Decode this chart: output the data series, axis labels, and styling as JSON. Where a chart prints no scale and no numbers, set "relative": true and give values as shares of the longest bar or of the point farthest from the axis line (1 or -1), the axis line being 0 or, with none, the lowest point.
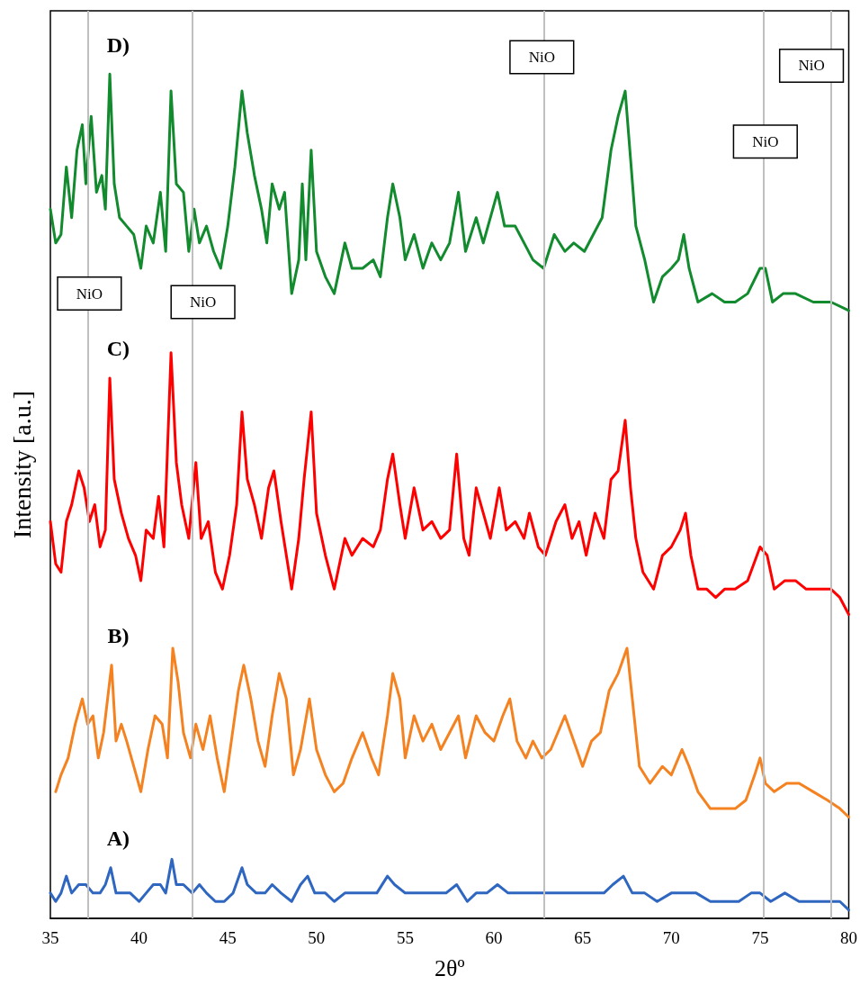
{
  "chart_data": {
    "type": "line",
    "relative": true,
    "xlabel": "2θº",
    "ylabel": "Intensity [a.u.]",
    "xlim": [
      35,
      80
    ],
    "xticks": [
      35,
      40,
      45,
      50,
      55,
      60,
      65,
      70,
      75,
      80
    ],
    "grid": false,
    "legend": false,
    "marker": "none",
    "line_style": "solid",
    "series": [
      {
        "name": "A)",
        "color": "#2e66c0",
        "x": [
          35.0,
          35.3,
          35.6,
          35.9,
          36.2,
          36.6,
          37.0,
          37.4,
          37.8,
          38.1,
          38.4,
          38.7,
          39.1,
          39.5,
          40.0,
          40.4,
          40.8,
          41.2,
          41.5,
          41.85,
          42.1,
          42.5,
          43.0,
          43.4,
          43.8,
          44.3,
          44.8,
          45.3,
          45.8,
          46.1,
          46.6,
          47.1,
          47.5,
          48.0,
          48.6,
          49.1,
          49.5,
          49.9,
          50.5,
          51.0,
          51.6,
          52.2,
          52.8,
          53.4,
          54.0,
          54.4,
          55.0,
          55.6,
          56.2,
          56.8,
          57.3,
          57.9,
          58.5,
          59.0,
          59.6,
          60.2,
          60.8,
          61.4,
          62.0,
          62.6,
          63.2,
          63.8,
          64.4,
          65.0,
          65.6,
          66.2,
          66.7,
          67.3,
          67.8,
          68.5,
          69.2,
          70.0,
          70.7,
          71.4,
          72.2,
          73.0,
          73.8,
          74.5,
          75.0,
          75.6,
          76.4,
          77.2,
          78.0,
          79.0,
          79.5,
          80.0
        ],
        "values": [
          0.03,
          0.02,
          0.03,
          0.05,
          0.03,
          0.04,
          0.04,
          0.03,
          0.03,
          0.04,
          0.06,
          0.03,
          0.03,
          0.03,
          0.02,
          0.03,
          0.04,
          0.04,
          0.03,
          0.07,
          0.04,
          0.04,
          0.03,
          0.04,
          0.03,
          0.02,
          0.02,
          0.03,
          0.06,
          0.04,
          0.03,
          0.03,
          0.04,
          0.03,
          0.02,
          0.04,
          0.05,
          0.03,
          0.03,
          0.02,
          0.03,
          0.03,
          0.03,
          0.03,
          0.05,
          0.04,
          0.03,
          0.03,
          0.03,
          0.03,
          0.03,
          0.04,
          0.02,
          0.03,
          0.03,
          0.04,
          0.03,
          0.03,
          0.03,
          0.03,
          0.03,
          0.03,
          0.03,
          0.03,
          0.03,
          0.03,
          0.04,
          0.05,
          0.03,
          0.03,
          0.02,
          0.03,
          0.03,
          0.03,
          0.02,
          0.02,
          0.02,
          0.03,
          0.03,
          0.02,
          0.03,
          0.02,
          0.02,
          0.02,
          0.02,
          0.01
        ]
      },
      {
        "name": "B)",
        "color": "#f58220",
        "x": [
          35.3,
          35.6,
          36.0,
          36.4,
          36.8,
          37.1,
          37.4,
          37.7,
          38.0,
          38.45,
          38.7,
          39.0,
          39.3,
          39.7,
          40.1,
          40.5,
          40.9,
          41.3,
          41.6,
          41.9,
          42.2,
          42.5,
          42.9,
          43.2,
          43.6,
          44.0,
          44.4,
          44.8,
          45.2,
          45.6,
          45.9,
          46.3,
          46.7,
          47.1,
          47.5,
          47.9,
          48.3,
          48.7,
          49.1,
          49.6,
          50.0,
          50.5,
          51.0,
          51.5,
          52.0,
          52.6,
          53.1,
          53.5,
          54.0,
          54.3,
          54.7,
          55.0,
          55.5,
          56.0,
          56.5,
          57.0,
          57.5,
          58.0,
          58.4,
          59.0,
          59.5,
          60.0,
          60.5,
          60.9,
          61.3,
          61.8,
          62.2,
          62.7,
          63.2,
          63.6,
          64.0,
          64.5,
          65.0,
          65.5,
          66.0,
          66.5,
          67.0,
          67.5,
          67.8,
          68.2,
          68.8,
          69.5,
          70.0,
          70.6,
          71.0,
          71.5,
          72.2,
          73.0,
          73.6,
          74.2,
          74.7,
          75.0,
          75.3,
          75.8,
          76.5,
          77.2,
          78.0,
          78.8,
          79.5,
          80.0
        ],
        "values": [
          0.15,
          0.17,
          0.19,
          0.23,
          0.26,
          0.23,
          0.24,
          0.19,
          0.22,
          0.3,
          0.21,
          0.23,
          0.21,
          0.18,
          0.15,
          0.2,
          0.24,
          0.23,
          0.19,
          0.32,
          0.28,
          0.22,
          0.19,
          0.23,
          0.2,
          0.24,
          0.19,
          0.15,
          0.21,
          0.27,
          0.3,
          0.26,
          0.21,
          0.18,
          0.24,
          0.29,
          0.26,
          0.17,
          0.2,
          0.26,
          0.2,
          0.17,
          0.15,
          0.16,
          0.19,
          0.22,
          0.19,
          0.17,
          0.24,
          0.29,
          0.26,
          0.19,
          0.24,
          0.21,
          0.23,
          0.2,
          0.22,
          0.24,
          0.19,
          0.24,
          0.22,
          0.21,
          0.24,
          0.26,
          0.21,
          0.19,
          0.21,
          0.19,
          0.2,
          0.22,
          0.24,
          0.21,
          0.18,
          0.21,
          0.22,
          0.27,
          0.29,
          0.32,
          0.26,
          0.18,
          0.16,
          0.18,
          0.17,
          0.2,
          0.18,
          0.15,
          0.13,
          0.13,
          0.13,
          0.14,
          0.17,
          0.19,
          0.16,
          0.15,
          0.16,
          0.16,
          0.15,
          0.14,
          0.13,
          0.12
        ]
      },
      {
        "name": "C)",
        "color": "#ff0000",
        "x": [
          35.0,
          35.3,
          35.6,
          35.9,
          36.2,
          36.6,
          36.9,
          37.2,
          37.5,
          37.8,
          38.1,
          38.35,
          38.6,
          39.0,
          39.4,
          39.8,
          40.1,
          40.4,
          40.8,
          41.1,
          41.4,
          41.8,
          42.1,
          42.4,
          42.8,
          43.2,
          43.5,
          43.9,
          44.3,
          44.7,
          45.1,
          45.5,
          45.8,
          46.1,
          46.5,
          46.9,
          47.3,
          47.6,
          48.0,
          48.6,
          49.0,
          49.3,
          49.7,
          50.0,
          50.5,
          51.0,
          51.6,
          52.0,
          52.6,
          53.2,
          53.6,
          54.0,
          54.3,
          54.7,
          55.0,
          55.5,
          56.0,
          56.5,
          57.0,
          57.5,
          57.9,
          58.3,
          58.6,
          59.0,
          59.4,
          59.8,
          60.3,
          60.7,
          61.2,
          61.7,
          62.0,
          62.5,
          62.9,
          63.5,
          64.0,
          64.4,
          64.8,
          65.2,
          65.7,
          66.2,
          66.6,
          67.0,
          67.4,
          67.7,
          68.0,
          68.4,
          69.0,
          69.5,
          70.0,
          70.5,
          70.8,
          71.1,
          71.5,
          72.0,
          72.5,
          73.0,
          73.6,
          74.3,
          75.0,
          75.4,
          75.8,
          76.4,
          77.0,
          77.6,
          78.3,
          79.0,
          79.5,
          80.0
        ],
        "values": [
          0.47,
          0.42,
          0.41,
          0.47,
          0.49,
          0.53,
          0.51,
          0.47,
          0.49,
          0.44,
          0.46,
          0.64,
          0.52,
          0.48,
          0.45,
          0.43,
          0.4,
          0.46,
          0.45,
          0.5,
          0.44,
          0.67,
          0.54,
          0.49,
          0.45,
          0.54,
          0.45,
          0.47,
          0.41,
          0.39,
          0.43,
          0.49,
          0.6,
          0.52,
          0.49,
          0.45,
          0.51,
          0.53,
          0.47,
          0.39,
          0.45,
          0.52,
          0.6,
          0.48,
          0.43,
          0.39,
          0.45,
          0.43,
          0.45,
          0.44,
          0.46,
          0.52,
          0.55,
          0.49,
          0.45,
          0.51,
          0.46,
          0.47,
          0.45,
          0.46,
          0.55,
          0.45,
          0.43,
          0.51,
          0.48,
          0.45,
          0.51,
          0.46,
          0.47,
          0.45,
          0.48,
          0.44,
          0.43,
          0.47,
          0.49,
          0.45,
          0.47,
          0.43,
          0.48,
          0.45,
          0.52,
          0.53,
          0.59,
          0.51,
          0.45,
          0.41,
          0.39,
          0.43,
          0.44,
          0.46,
          0.48,
          0.43,
          0.39,
          0.39,
          0.38,
          0.39,
          0.39,
          0.4,
          0.44,
          0.43,
          0.39,
          0.4,
          0.4,
          0.39,
          0.39,
          0.39,
          0.38,
          0.36
        ]
      },
      {
        "name": "D)",
        "color": "#128a2e",
        "x": [
          35.0,
          35.3,
          35.6,
          35.9,
          36.2,
          36.5,
          36.8,
          37.0,
          37.3,
          37.6,
          37.9,
          38.1,
          38.35,
          38.6,
          38.9,
          39.3,
          39.7,
          40.1,
          40.4,
          40.8,
          41.2,
          41.5,
          41.8,
          42.1,
          42.5,
          42.8,
          43.1,
          43.4,
          43.8,
          44.2,
          44.6,
          45.0,
          45.4,
          45.8,
          46.1,
          46.5,
          46.9,
          47.2,
          47.5,
          47.9,
          48.2,
          48.6,
          49.0,
          49.2,
          49.4,
          49.7,
          50.0,
          50.5,
          51.0,
          51.6,
          52.0,
          52.6,
          53.2,
          53.6,
          54.0,
          54.3,
          54.7,
          55.0,
          55.5,
          56.0,
          56.5,
          57.0,
          57.5,
          58.0,
          58.4,
          59.0,
          59.4,
          60.2,
          60.6,
          61.2,
          61.7,
          62.2,
          62.8,
          63.4,
          64.0,
          64.5,
          65.1,
          65.6,
          66.1,
          66.6,
          67.0,
          67.4,
          67.7,
          68.0,
          68.5,
          69.0,
          69.5,
          70.0,
          70.4,
          70.7,
          71.0,
          71.5,
          72.3,
          73.0,
          73.6,
          74.3,
          75.0,
          75.3,
          75.7,
          76.3,
          77.0,
          78.0,
          79.0,
          80.0
        ],
        "values": [
          0.84,
          0.8,
          0.81,
          0.89,
          0.83,
          0.91,
          0.94,
          0.87,
          0.95,
          0.86,
          0.88,
          0.84,
          1.0,
          0.87,
          0.83,
          0.82,
          0.81,
          0.77,
          0.82,
          0.8,
          0.86,
          0.79,
          0.98,
          0.87,
          0.86,
          0.79,
          0.84,
          0.8,
          0.82,
          0.79,
          0.77,
          0.82,
          0.89,
          0.98,
          0.93,
          0.88,
          0.84,
          0.8,
          0.87,
          0.84,
          0.86,
          0.74,
          0.78,
          0.87,
          0.78,
          0.91,
          0.79,
          0.76,
          0.74,
          0.8,
          0.77,
          0.77,
          0.78,
          0.76,
          0.83,
          0.87,
          0.83,
          0.78,
          0.81,
          0.77,
          0.8,
          0.78,
          0.8,
          0.86,
          0.79,
          0.83,
          0.8,
          0.86,
          0.82,
          0.82,
          0.8,
          0.78,
          0.77,
          0.81,
          0.79,
          0.8,
          0.79,
          0.81,
          0.83,
          0.91,
          0.95,
          0.98,
          0.9,
          0.82,
          0.78,
          0.73,
          0.76,
          0.77,
          0.78,
          0.81,
          0.77,
          0.73,
          0.74,
          0.73,
          0.73,
          0.74,
          0.77,
          0.77,
          0.73,
          0.74,
          0.74,
          0.73,
          0.73,
          0.72
        ]
      }
    ],
    "ref_lines": [
      {
        "axis": "x",
        "value": 37.1,
        "color": "#bfbfbf",
        "label": "NiO"
      },
      {
        "axis": "x",
        "value": 43.0,
        "color": "#bfbfbf",
        "label": "NiO"
      },
      {
        "axis": "x",
        "value": 62.8,
        "color": "#bfbfbf",
        "label": "NiO"
      },
      {
        "axis": "x",
        "value": 75.2,
        "color": "#bfbfbf",
        "label": "NiO"
      },
      {
        "axis": "x",
        "value": 79.0,
        "color": "#bfbfbf",
        "label": "NiO"
      }
    ]
  }
}
